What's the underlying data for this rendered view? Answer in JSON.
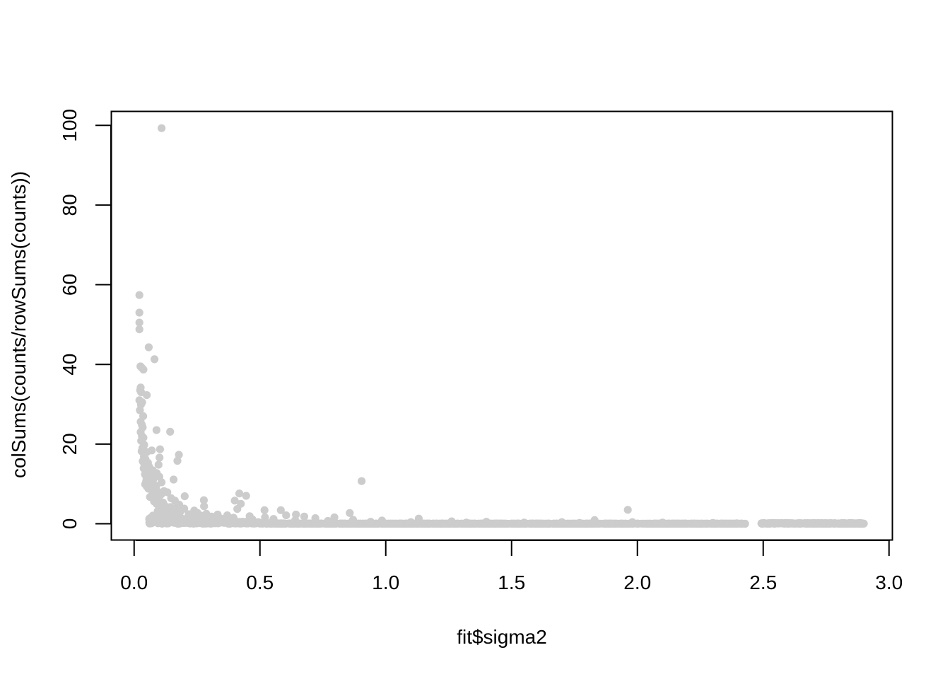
{
  "chart_data": {
    "type": "scatter",
    "title": "",
    "xlabel": "fit$sigma2",
    "ylabel": "colSums(counts/rowSums(counts))",
    "xlim": [
      -0.092,
      3.012
    ],
    "ylim": [
      -4.0,
      103.6
    ],
    "x_ticks": [
      {
        "value": 0.0,
        "label": "0.0"
      },
      {
        "value": 0.5,
        "label": "0.5"
      },
      {
        "value": 1.0,
        "label": "1.0"
      },
      {
        "value": 1.5,
        "label": "1.5"
      },
      {
        "value": 2.0,
        "label": "2.0"
      },
      {
        "value": 2.5,
        "label": "2.5"
      },
      {
        "value": 3.0,
        "label": "3.0"
      }
    ],
    "y_ticks": [
      {
        "value": 0,
        "label": "0"
      },
      {
        "value": 20,
        "label": "20"
      },
      {
        "value": 40,
        "label": "40"
      },
      {
        "value": 60,
        "label": "60"
      },
      {
        "value": 80,
        "label": "80"
      },
      {
        "value": 100,
        "label": "100"
      }
    ],
    "grid": false,
    "legend": "none",
    "point_color": "#cccccc",
    "series": [
      {
        "values": [
          [
            0.109,
            99.3
          ],
          [
            0.021,
            57.4
          ],
          [
            0.021,
            53.0
          ],
          [
            0.021,
            50.5
          ],
          [
            0.021,
            48.8
          ],
          [
            0.058,
            44.3
          ],
          [
            0.081,
            41.3
          ],
          [
            0.025,
            39.5
          ],
          [
            0.03,
            39.2
          ],
          [
            0.037,
            38.7
          ],
          [
            0.026,
            34.2
          ],
          [
            0.024,
            33.5
          ],
          [
            0.028,
            33.0
          ],
          [
            0.05,
            32.3
          ],
          [
            0.021,
            31.0
          ],
          [
            0.032,
            30.5
          ],
          [
            0.027,
            29.9
          ],
          [
            0.023,
            28.5
          ],
          [
            0.036,
            27.0
          ],
          [
            0.026,
            25.6
          ],
          [
            0.031,
            24.8
          ],
          [
            0.034,
            24.2
          ],
          [
            0.089,
            23.5
          ],
          [
            0.026,
            23.0
          ],
          [
            0.143,
            23.1
          ],
          [
            0.031,
            22.0
          ],
          [
            0.037,
            21.6
          ],
          [
            0.028,
            20.8
          ],
          [
            0.04,
            19.8
          ],
          [
            0.033,
            19.0
          ],
          [
            0.103,
            18.7
          ],
          [
            0.03,
            18.2
          ],
          [
            0.07,
            18.4
          ],
          [
            0.051,
            18.0
          ],
          [
            0.178,
            17.3
          ],
          [
            0.039,
            16.9
          ],
          [
            0.101,
            16.6
          ],
          [
            0.045,
            16.2
          ],
          [
            0.172,
            15.8
          ],
          [
            0.034,
            15.7
          ],
          [
            0.055,
            15.3
          ],
          [
            0.04,
            15.0
          ],
          [
            0.097,
            14.8
          ],
          [
            0.06,
            14.3
          ],
          [
            0.046,
            14.1
          ],
          [
            0.038,
            13.9
          ],
          [
            0.074,
            13.4
          ],
          [
            0.052,
            13.0
          ],
          [
            0.066,
            12.8
          ],
          [
            0.09,
            12.7
          ],
          [
            0.043,
            12.4
          ],
          [
            0.058,
            12.0
          ],
          [
            0.1,
            11.8
          ],
          [
            0.049,
            11.6
          ],
          [
            0.157,
            11.1
          ],
          [
            0.076,
            11.1
          ],
          [
            0.06,
            10.9
          ],
          [
            0.048,
            10.7
          ],
          [
            0.904,
            10.7
          ],
          [
            0.109,
            10.4
          ],
          [
            0.053,
            10.3
          ],
          [
            0.07,
            10.1
          ],
          [
            0.044,
            9.9
          ],
          [
            0.062,
            9.6
          ],
          [
            0.088,
            9.5
          ],
          [
            0.051,
            9.3
          ],
          [
            0.08,
            9.0
          ],
          [
            0.057,
            8.8
          ],
          [
            0.069,
            8.5
          ],
          [
            0.119,
            8.2
          ],
          [
            0.095,
            8.0
          ],
          [
            0.132,
            7.9
          ],
          [
            0.079,
            7.7
          ],
          [
            0.418,
            7.6
          ],
          [
            0.108,
            7.4
          ],
          [
            0.07,
            7.1
          ],
          [
            0.445,
            7.0
          ],
          [
            0.201,
            6.9
          ],
          [
            0.063,
            6.7
          ],
          [
            0.147,
            6.4
          ],
          [
            0.098,
            6.3
          ],
          [
            0.277,
            5.9
          ],
          [
            0.162,
            5.8
          ],
          [
            0.079,
            5.6
          ],
          [
            0.4,
            5.8
          ],
          [
            0.115,
            5.3
          ],
          [
            0.424,
            5.0
          ],
          [
            0.089,
            5.0
          ],
          [
            0.179,
            4.8
          ],
          [
            0.278,
            4.4
          ],
          [
            0.121,
            4.6
          ],
          [
            0.144,
            4.2
          ],
          [
            0.104,
            4.1
          ],
          [
            0.163,
            3.9
          ],
          [
            0.199,
            3.8
          ],
          [
            0.131,
            3.6
          ],
          [
            0.41,
            3.7
          ],
          [
            0.518,
            3.4
          ],
          [
            0.583,
            3.4
          ],
          [
            1.962,
            3.5
          ],
          [
            0.239,
            3.3
          ],
          [
            0.094,
            3.2
          ],
          [
            0.184,
            3.1
          ],
          [
            0.112,
            3.0
          ],
          [
            0.857,
            2.7
          ],
          [
            0.252,
            2.7
          ],
          [
            0.157,
            2.6
          ],
          [
            0.287,
            2.5
          ],
          [
            0.217,
            2.4
          ],
          [
            0.332,
            2.3
          ],
          [
            0.643,
            2.3
          ],
          [
            0.137,
            2.2
          ],
          [
            0.37,
            2.1
          ],
          [
            0.604,
            2.1
          ],
          [
            0.268,
            2.0
          ],
          [
            0.181,
            1.9
          ],
          [
            0.459,
            1.9
          ],
          [
            0.676,
            1.8
          ],
          [
            0.308,
            1.8
          ],
          [
            0.227,
            1.7
          ],
          [
            0.52,
            1.6
          ],
          [
            0.796,
            1.6
          ],
          [
            0.395,
            1.5
          ],
          [
            0.258,
            1.5
          ],
          [
            0.72,
            1.4
          ],
          [
            1.131,
            1.3
          ],
          [
            0.345,
            1.3
          ],
          [
            0.554,
            1.2
          ],
          [
            0.205,
            1.2
          ],
          [
            0.47,
            1.1
          ],
          [
            0.87,
            1.0
          ],
          [
            0.29,
            1.0
          ],
          [
            1.83,
            0.9
          ],
          [
            0.64,
            0.9
          ],
          [
            0.985,
            0.8
          ],
          [
            0.36,
            0.8
          ],
          [
            0.77,
            0.7
          ],
          [
            1.262,
            0.6
          ],
          [
            0.55,
            0.6
          ],
          [
            1.4,
            0.5
          ],
          [
            0.94,
            0.5
          ],
          [
            1.7,
            0.4
          ],
          [
            1.1,
            0.4
          ],
          [
            1.98,
            0.4
          ],
          [
            1.55,
            0.3
          ],
          [
            2.1,
            0.3
          ],
          [
            1.32,
            0.3
          ],
          [
            2.3,
            0.2
          ],
          [
            1.77,
            0.2
          ],
          [
            2.395,
            0.1
          ],
          [
            2.428,
            0.0
          ],
          [
            2.495,
            0.0
          ],
          [
            2.6,
            0.0
          ],
          [
            2.7,
            0.0
          ],
          [
            2.8,
            0.0
          ],
          [
            2.893,
            0.0
          ],
          [
            2.55,
            0.1
          ],
          [
            2.75,
            0.1
          ],
          [
            2.86,
            0.1
          ]
        ]
      }
    ],
    "dense_band": {
      "description_range": [
        [
          0.06,
          2.43,
          0.0,
          0.6
        ],
        [
          2.49,
          2.9,
          0.0,
          0.2
        ]
      ],
      "count": 1400
    }
  }
}
